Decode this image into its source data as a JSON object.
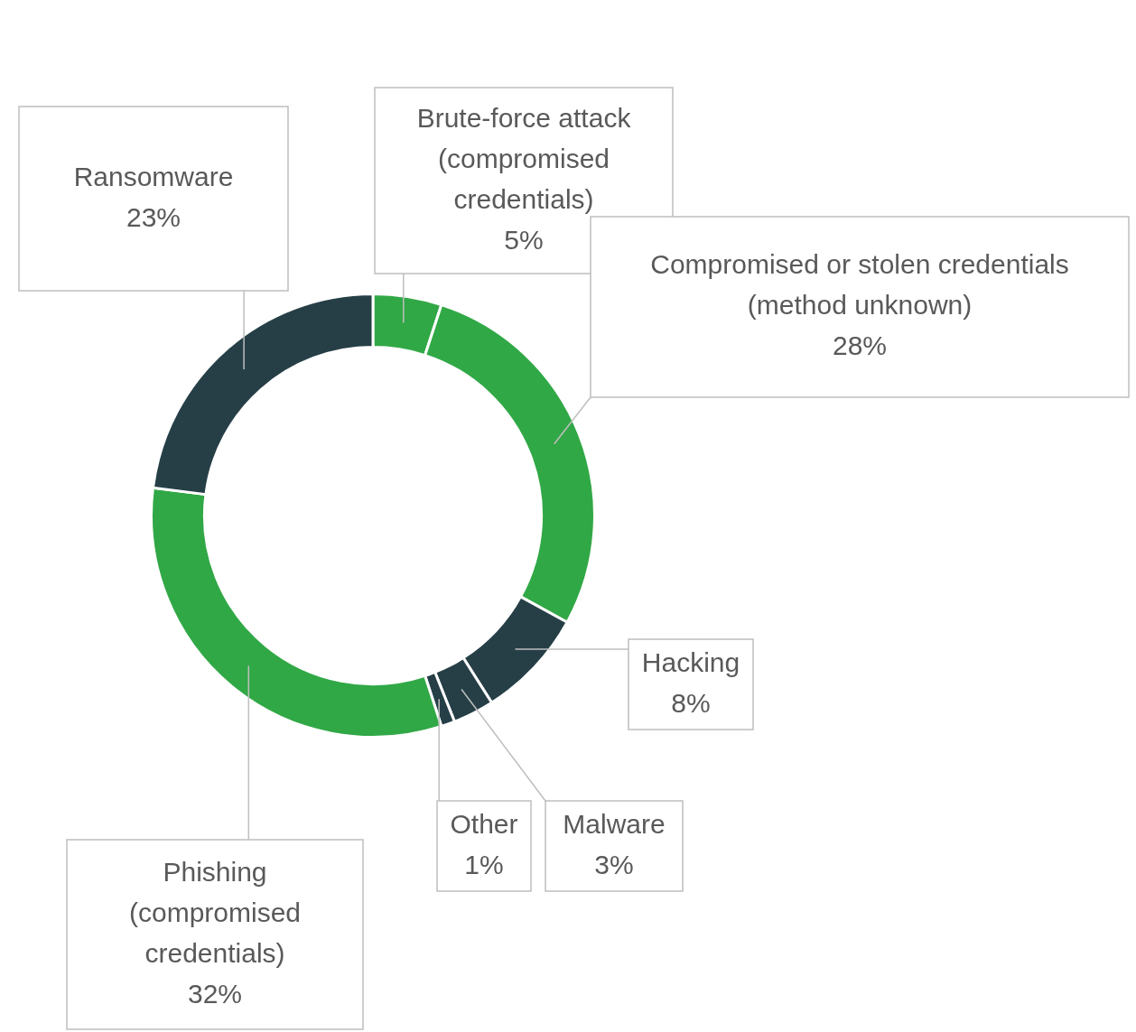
{
  "chart_data": {
    "type": "donut",
    "categories": [
      "Brute-force attack (compromised credentials)",
      "Compromised or stolen credentials (method unknown)",
      "Hacking",
      "Malware",
      "Other",
      "Phishing (compromised credentials)",
      "Ransomware"
    ],
    "values": [
      5,
      28,
      8,
      3,
      1,
      32,
      23
    ],
    "colors": [
      "#31a846",
      "#31a846",
      "#263f47",
      "#263f47",
      "#263f47",
      "#31a846",
      "#263f47"
    ],
    "value_labels": [
      "5%",
      "28%",
      "8%",
      "3%",
      "1%",
      "32%",
      "23%"
    ]
  }
}
